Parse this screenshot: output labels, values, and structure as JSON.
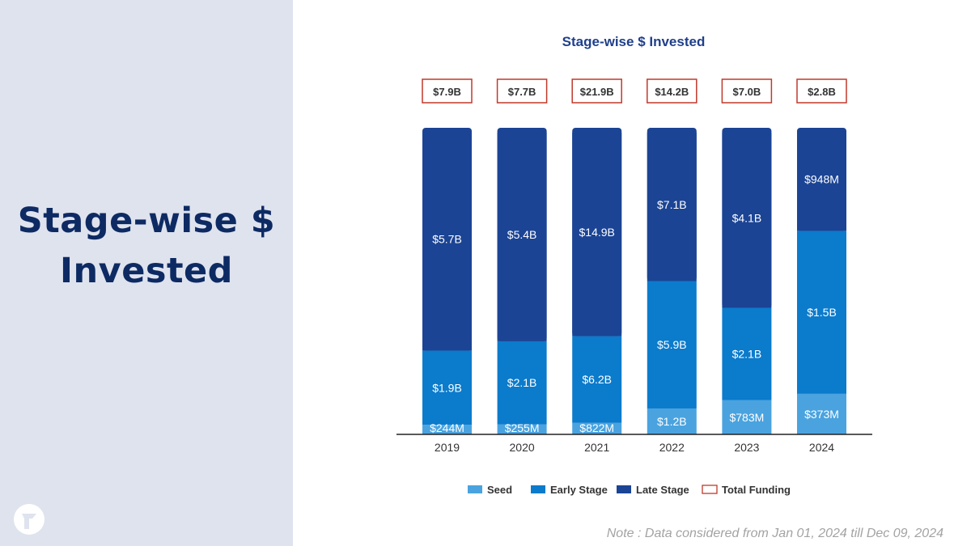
{
  "slide": {
    "title_line1": "Stage-wise $",
    "title_line2": "Invested",
    "note": "Note : Data considered from Jan 01, 2024 till Dec 09, 2024"
  },
  "colors": {
    "panel_bg": "#dfe3ee",
    "title": "#0d2a63",
    "seed": "#4aa3df",
    "early": "#0b7bcc",
    "late": "#1b4494",
    "total_border": "#c0392b"
  },
  "chart_data": {
    "type": "bar",
    "stacked": true,
    "title": "Stage-wise $ Invested",
    "categories": [
      "2019",
      "2020",
      "2021",
      "2022",
      "2023",
      "2024"
    ],
    "series": [
      {
        "name": "Seed",
        "color": "#4aa3df",
        "values": [
          0.244,
          0.255,
          0.822,
          1.2,
          0.783,
          0.373
        ],
        "labels": [
          "$244M",
          "$255M",
          "$822M",
          "$1.2B",
          "$783M",
          "$373M"
        ]
      },
      {
        "name": "Early Stage",
        "color": "#0b7bcc",
        "values": [
          1.9,
          2.1,
          6.2,
          5.9,
          2.1,
          1.5
        ],
        "labels": [
          "$1.9B",
          "$2.1B",
          "$6.2B",
          "$5.9B",
          "$2.1B",
          "$1.5B"
        ]
      },
      {
        "name": "Late Stage",
        "color": "#1b4494",
        "values": [
          5.7,
          5.4,
          14.9,
          7.1,
          4.1,
          0.948
        ],
        "labels": [
          "$5.7B",
          "$5.4B",
          "$14.9B",
          "$7.1B",
          "$4.1B",
          "$948M"
        ]
      }
    ],
    "totals": {
      "name": "Total Funding",
      "values": [
        7.9,
        7.7,
        21.9,
        14.2,
        7.0,
        2.8
      ],
      "labels": [
        "$7.9B",
        "$7.7B",
        "$21.9B",
        "$14.2B",
        "$7.0B",
        "$2.8B"
      ]
    },
    "normalized": true,
    "legend_position": "bottom",
    "unit": "USD billions"
  }
}
